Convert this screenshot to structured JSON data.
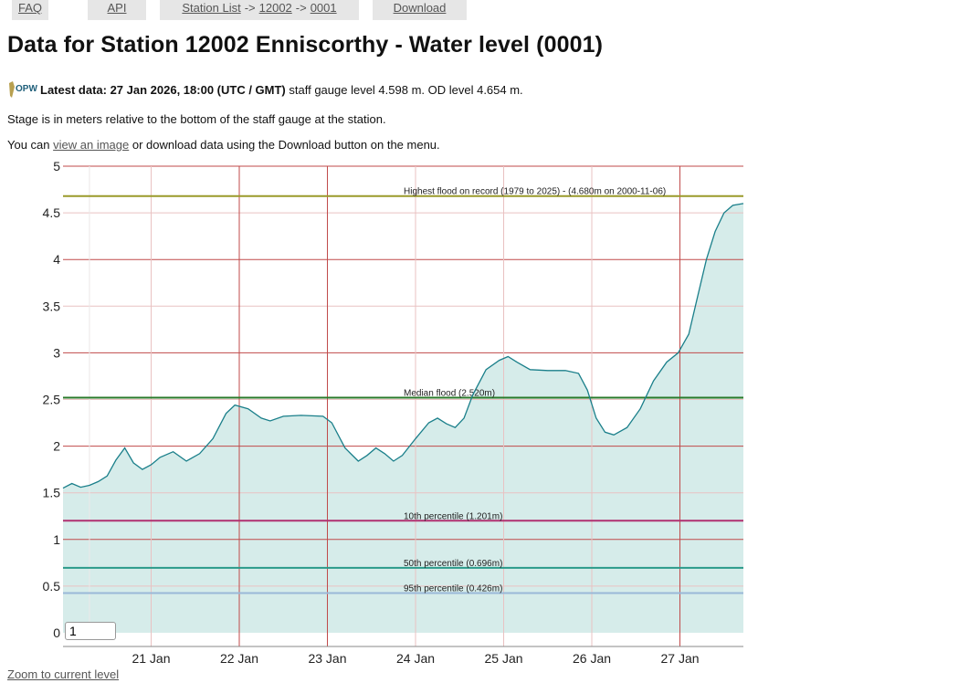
{
  "nav": {
    "faq": "FAQ",
    "api": "API",
    "station_list": "Station List",
    "sep1": "->",
    "station_code": "12002",
    "sep2": "->",
    "sensor_code": "0001",
    "download": "Download"
  },
  "page": {
    "title": "Data for Station 12002 Enniscorthy - Water level (0001)",
    "logo_text": "OPW",
    "latest_label": "Latest data: 27 Jan 2026, 18:00 (UTC / GMT)",
    "latest_text": " staff gauge level 4.598 m. OD level 4.654 m.",
    "stage_note": "Stage is in meters relative to the bottom of the staff gauge at the station.",
    "download_pre": "You can ",
    "download_link": "view an image",
    "download_post": " or download data using the Download button on the menu.",
    "zoom_link": "Zoom to current level",
    "level_input_value": "1"
  },
  "colors": {
    "fill": "#d6ecea",
    "line": "#1a7f8a",
    "highest": "#9a9a2a",
    "median": "#2a7a2a",
    "p10": "#b03070",
    "p50": "#2a9a8a",
    "p95": "#9ab8d8",
    "grid_major": "#c04a4a",
    "grid_minor": "#e9c2c2"
  },
  "chart_data": {
    "type": "area",
    "title": "",
    "xlabel": "",
    "ylabel": "",
    "ylim": [
      0,
      5
    ],
    "yticks": [
      "0",
      "0.5",
      "1",
      "1.5",
      "2",
      "2.5",
      "3",
      "3.5",
      "4",
      "4.5",
      "5"
    ],
    "xlim": [
      20.0,
      27.72
    ],
    "xticks": [
      {
        "x": 21,
        "label": "21 Jan"
      },
      {
        "x": 22,
        "label": "22 Jan"
      },
      {
        "x": 23,
        "label": "23 Jan"
      },
      {
        "x": 24,
        "label": "24 Jan"
      },
      {
        "x": 25,
        "label": "25 Jan"
      },
      {
        "x": 26,
        "label": "26 Jan"
      },
      {
        "x": 27,
        "label": "27 Jan"
      }
    ],
    "reference_lines": [
      {
        "name": "Highest flood on record (1979 to 2025) - (4.680m on 2000-11-06)",
        "value": 4.68,
        "color_key": "highest"
      },
      {
        "name": "Median flood (2.520m)",
        "value": 2.52,
        "color_key": "median"
      },
      {
        "name": "10th percentile (1.201m)",
        "value": 1.201,
        "color_key": "p10"
      },
      {
        "name": "50th percentile (0.696m)",
        "value": 0.696,
        "color_key": "p50"
      },
      {
        "name": "95th percentile (0.426m)",
        "value": 0.426,
        "color_key": "p95"
      }
    ],
    "series": [
      {
        "name": "Water level",
        "points": [
          [
            20.0,
            1.55
          ],
          [
            20.1,
            1.6
          ],
          [
            20.2,
            1.56
          ],
          [
            20.3,
            1.58
          ],
          [
            20.4,
            1.62
          ],
          [
            20.5,
            1.68
          ],
          [
            20.6,
            1.85
          ],
          [
            20.7,
            1.98
          ],
          [
            20.8,
            1.82
          ],
          [
            20.9,
            1.75
          ],
          [
            21.0,
            1.8
          ],
          [
            21.1,
            1.88
          ],
          [
            21.25,
            1.94
          ],
          [
            21.4,
            1.84
          ],
          [
            21.55,
            1.92
          ],
          [
            21.7,
            2.08
          ],
          [
            21.85,
            2.35
          ],
          [
            21.95,
            2.44
          ],
          [
            22.1,
            2.4
          ],
          [
            22.25,
            2.3
          ],
          [
            22.35,
            2.27
          ],
          [
            22.5,
            2.32
          ],
          [
            22.7,
            2.33
          ],
          [
            22.95,
            2.32
          ],
          [
            23.05,
            2.25
          ],
          [
            23.2,
            1.98
          ],
          [
            23.35,
            1.84
          ],
          [
            23.45,
            1.9
          ],
          [
            23.55,
            1.98
          ],
          [
            23.65,
            1.92
          ],
          [
            23.75,
            1.84
          ],
          [
            23.85,
            1.9
          ],
          [
            24.0,
            2.08
          ],
          [
            24.15,
            2.25
          ],
          [
            24.25,
            2.3
          ],
          [
            24.35,
            2.24
          ],
          [
            24.45,
            2.2
          ],
          [
            24.55,
            2.3
          ],
          [
            24.65,
            2.55
          ],
          [
            24.8,
            2.82
          ],
          [
            24.95,
            2.92
          ],
          [
            25.05,
            2.96
          ],
          [
            25.15,
            2.9
          ],
          [
            25.3,
            2.82
          ],
          [
            25.5,
            2.81
          ],
          [
            25.7,
            2.81
          ],
          [
            25.85,
            2.78
          ],
          [
            25.95,
            2.6
          ],
          [
            26.05,
            2.3
          ],
          [
            26.15,
            2.15
          ],
          [
            26.25,
            2.12
          ],
          [
            26.4,
            2.2
          ],
          [
            26.55,
            2.4
          ],
          [
            26.7,
            2.7
          ],
          [
            26.85,
            2.9
          ],
          [
            26.98,
            3.0
          ],
          [
            27.1,
            3.2
          ],
          [
            27.2,
            3.6
          ],
          [
            27.3,
            4.0
          ],
          [
            27.4,
            4.3
          ],
          [
            27.5,
            4.5
          ],
          [
            27.6,
            4.58
          ],
          [
            27.72,
            4.6
          ]
        ]
      }
    ]
  }
}
